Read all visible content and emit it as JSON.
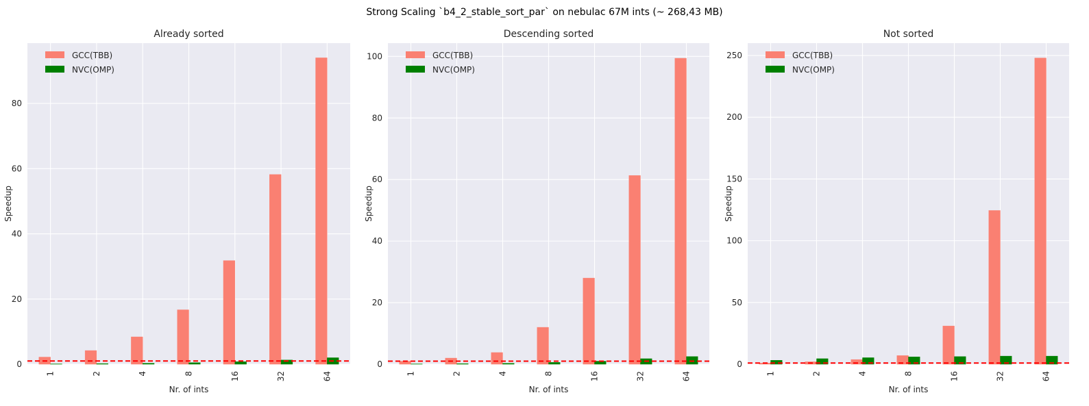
{
  "figure": {
    "suptitle": "Strong Scaling `b4_2_stable_sort_par` on nebulac 67M ints (~ 268,43 MB)"
  },
  "colors": {
    "background": "#eaeaf2",
    "grid": "#ffffff",
    "gcc": "#fa8072",
    "nvc": "#008000",
    "baseline": "#ff0000",
    "text": "#262626"
  },
  "chart_data": [
    {
      "type": "bar",
      "title": "Already sorted",
      "xlabel": "Nr. of ints",
      "ylabel": "Speedup",
      "categories": [
        "1",
        "2",
        "4",
        "8",
        "16",
        "32",
        "64"
      ],
      "series": [
        {
          "name": "GCC(TBB)",
          "values": [
            2.2,
            4.2,
            8.4,
            16.7,
            31.8,
            58.2,
            94.0
          ]
        },
        {
          "name": "NVC(OMP)",
          "values": [
            0.1,
            0.2,
            0.3,
            0.5,
            0.8,
            1.3,
            2.0
          ]
        }
      ],
      "baseline": 1,
      "ylim": [
        0,
        98.5
      ],
      "yticks": [
        0,
        20,
        40,
        60,
        80
      ],
      "legend": "top-left",
      "grid": true
    },
    {
      "type": "bar",
      "title": "Descending sorted",
      "xlabel": "Nr. of ints",
      "ylabel": "Speedup",
      "categories": [
        "1",
        "2",
        "4",
        "8",
        "16",
        "32",
        "64"
      ],
      "series": [
        {
          "name": "GCC(TBB)",
          "values": [
            1.0,
            2.0,
            3.8,
            12.0,
            28.0,
            61.3,
            99.4
          ]
        },
        {
          "name": "NVC(OMP)",
          "values": [
            0.1,
            0.2,
            0.3,
            0.6,
            1.0,
            1.8,
            2.5
          ]
        }
      ],
      "baseline": 1,
      "ylim": [
        0,
        104.3
      ],
      "yticks": [
        0,
        20,
        40,
        60,
        80,
        100
      ],
      "legend": "top-left",
      "grid": true
    },
    {
      "type": "bar",
      "title": "Not sorted",
      "xlabel": "Nr. of ints",
      "ylabel": "Speedup",
      "categories": [
        "1",
        "2",
        "4",
        "8",
        "16",
        "32",
        "64"
      ],
      "series": [
        {
          "name": "GCC(TBB)",
          "values": [
            1.0,
            2.0,
            3.8,
            7.0,
            31.0,
            124.5,
            248.0
          ]
        },
        {
          "name": "NVC(OMP)",
          "values": [
            3.2,
            4.5,
            5.3,
            6.0,
            6.2,
            6.6,
            6.6
          ]
        }
      ],
      "baseline": 1,
      "ylim": [
        0,
        260
      ],
      "yticks": [
        0,
        50,
        100,
        150,
        200,
        250
      ],
      "legend": "top-left",
      "grid": true
    }
  ]
}
